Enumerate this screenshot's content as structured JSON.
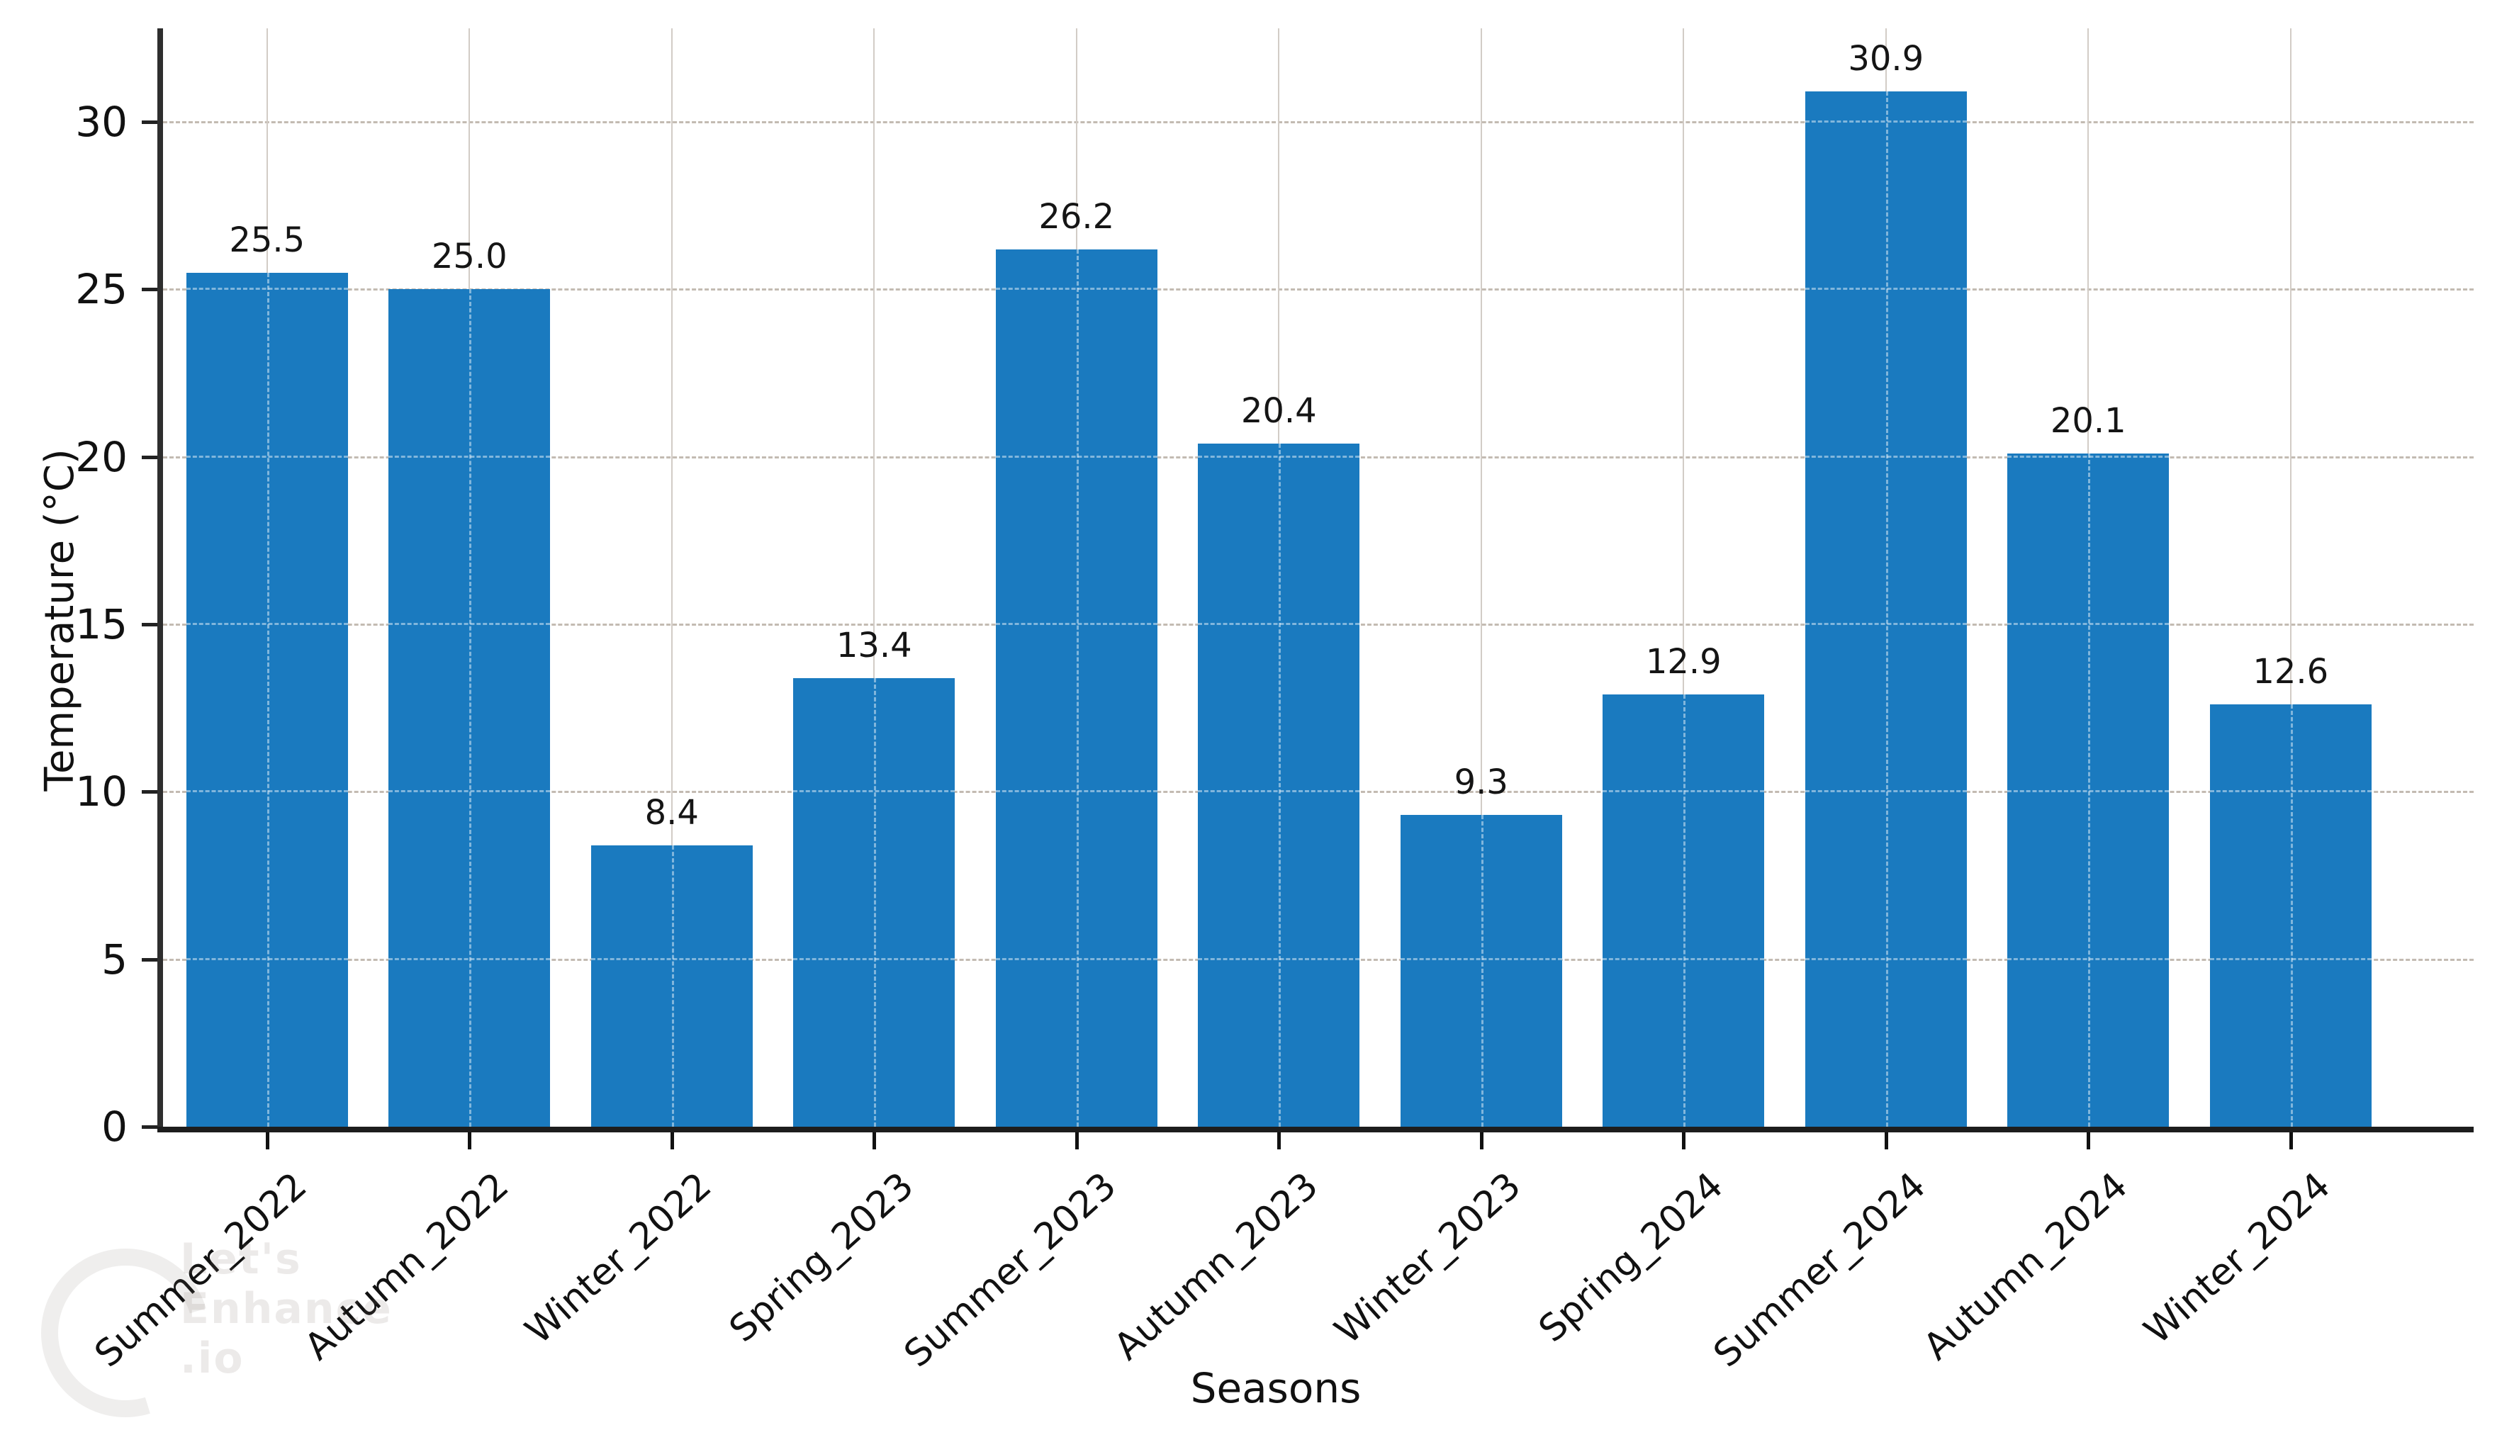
{
  "chart_data": {
    "type": "bar",
    "title": "",
    "xlabel": "Seasons",
    "ylabel": "Temperature (°C)",
    "categories": [
      "Summer_2022",
      "Autumn_2022",
      "Winter_2022",
      "Spring_2023",
      "Summer_2023",
      "Autumn_2023",
      "Winter_2023",
      "Spring_2024",
      "Summer_2024",
      "Autumn_2024",
      "Winter_2024"
    ],
    "values": [
      25.5,
      25.0,
      8.4,
      13.4,
      26.2,
      20.4,
      9.3,
      12.9,
      30.9,
      20.1,
      12.6
    ],
    "value_labels": [
      "25.5",
      "25.0",
      "8.4",
      "13.4",
      "26.2",
      "20.4",
      "9.3",
      "12.9",
      "30.9",
      "20.1",
      "12.6"
    ],
    "yticks": [
      0,
      5,
      10,
      15,
      20,
      25,
      30
    ],
    "ylim": [
      0,
      32.8
    ],
    "grid": true,
    "legend": "none",
    "bar_color": "#1a7abf"
  },
  "watermark": {
    "lines": [
      "Let's",
      "Enhance",
      ".io"
    ]
  }
}
